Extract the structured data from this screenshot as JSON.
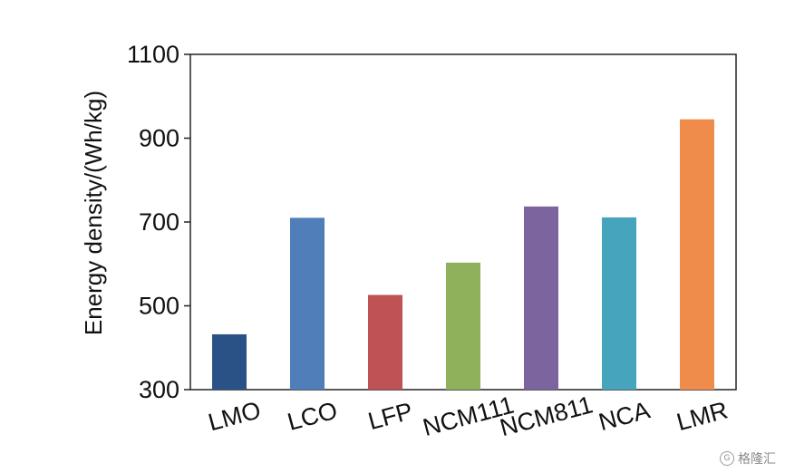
{
  "chart_data": {
    "type": "bar",
    "title": "",
    "xlabel": "",
    "ylabel": "Energy density/(Wh/kg)",
    "ylim": [
      300,
      1100
    ],
    "yticks": [
      300,
      500,
      700,
      900,
      1100
    ],
    "grid": false,
    "legend": "none",
    "categories": [
      "LMO",
      "LCO",
      "LFP",
      "NCM111",
      "NCM811",
      "NCA",
      "LMR"
    ],
    "values": [
      432,
      710,
      526,
      603,
      737,
      711,
      945
    ],
    "colors": [
      "#2b5286",
      "#4f7eb8",
      "#bf5254",
      "#8fb15c",
      "#7c659f",
      "#46a5bd",
      "#ef8b4b"
    ]
  },
  "watermark": {
    "text": "格隆汇",
    "icon": "G"
  }
}
